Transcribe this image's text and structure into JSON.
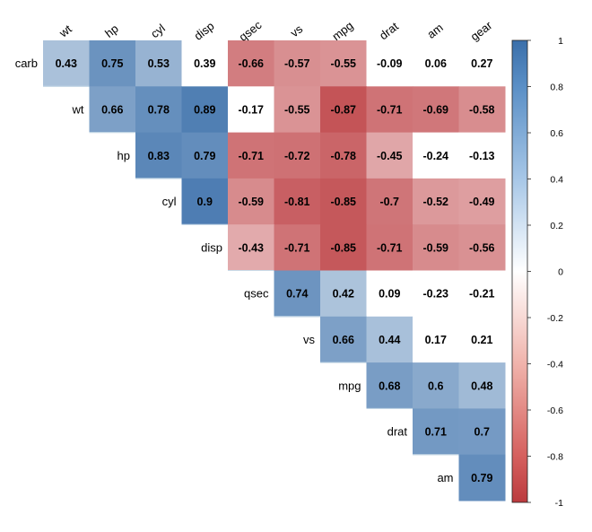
{
  "chart_data": {
    "type": "heatmap",
    "title": "",
    "columns": [
      "wt",
      "hp",
      "cyl",
      "disp",
      "qsec",
      "vs",
      "mpg",
      "drat",
      "am",
      "gear"
    ],
    "rows": [
      {
        "label": "carb",
        "values": [
          0.43,
          0.75,
          0.53,
          0.39,
          -0.66,
          -0.57,
          -0.55,
          -0.09,
          0.06,
          0.27
        ]
      },
      {
        "label": "wt",
        "values": [
          null,
          0.66,
          0.78,
          0.89,
          -0.17,
          -0.55,
          -0.87,
          -0.71,
          -0.69,
          -0.58
        ]
      },
      {
        "label": "hp",
        "values": [
          null,
          null,
          0.83,
          0.79,
          -0.71,
          -0.72,
          -0.78,
          -0.45,
          -0.24,
          -0.13
        ]
      },
      {
        "label": "cyl",
        "values": [
          null,
          null,
          null,
          0.9,
          -0.59,
          -0.81,
          -0.85,
          -0.7,
          -0.52,
          -0.49
        ]
      },
      {
        "label": "disp",
        "values": [
          null,
          null,
          null,
          null,
          -0.43,
          -0.71,
          -0.85,
          -0.71,
          -0.59,
          -0.56
        ]
      },
      {
        "label": "qsec",
        "values": [
          null,
          null,
          null,
          null,
          null,
          0.74,
          0.42,
          0.09,
          -0.23,
          -0.21
        ]
      },
      {
        "label": "vs",
        "values": [
          null,
          null,
          null,
          null,
          null,
          null,
          0.66,
          0.44,
          0.17,
          0.21
        ]
      },
      {
        "label": "mpg",
        "values": [
          null,
          null,
          null,
          null,
          null,
          null,
          null,
          0.68,
          0.6,
          0.48
        ]
      },
      {
        "label": "drat",
        "values": [
          null,
          null,
          null,
          null,
          null,
          null,
          null,
          null,
          0.71,
          0.7
        ]
      },
      {
        "label": "am",
        "values": [
          null,
          null,
          null,
          null,
          null,
          null,
          null,
          null,
          null,
          0.79
        ]
      }
    ],
    "cell_labels": {
      "carb": [
        "0.43",
        "0.75",
        "0.53",
        "0.39",
        "-0.66",
        "-0.57",
        "-0.55",
        "-0.09",
        "0.06",
        "0.27"
      ],
      "wt": [
        "",
        "0.66",
        "0.78",
        "0.89",
        "-0.17",
        "-0.55",
        "-0.87",
        "-0.71",
        "-0.69",
        "-0.58"
      ],
      "hp": [
        "",
        "",
        "0.83",
        "0.79",
        "-0.71",
        "-0.72",
        "-0.78",
        "-0.45",
        "-0.24",
        "-0.13"
      ],
      "cyl": [
        "",
        "",
        "",
        "0.9",
        "-0.59",
        "-0.81",
        "-0.85",
        "-0.7",
        "-0.52",
        "-0.49"
      ],
      "disp": [
        "",
        "",
        "",
        "",
        "-0.43",
        "-0.71",
        "-0.85",
        "-0.71",
        "-0.59",
        "-0.56"
      ],
      "qsec": [
        "",
        "",
        "",
        "",
        "",
        "0.74",
        "0.42",
        "0.09",
        "-0.23",
        "-0.21"
      ],
      "vs": [
        "",
        "",
        "",
        "",
        "",
        "",
        "0.66",
        "0.44",
        "0.17",
        "0.21"
      ],
      "mpg": [
        "",
        "",
        "",
        "",
        "",
        "",
        "",
        "0.68",
        "0.6",
        "0.48"
      ],
      "drat": [
        "",
        "",
        "",
        "",
        "",
        "",
        "",
        "",
        "0.71",
        "0.7"
      ],
      "am": [
        "",
        "",
        "",
        "",
        "",
        "",
        "",
        "",
        "",
        "0.79"
      ]
    },
    "color_scale": {
      "range": [
        -1,
        1
      ],
      "ticks": [
        1,
        0.8,
        0.6,
        0.4,
        0.2,
        0,
        -0.2,
        -0.4,
        -0.6,
        -0.8,
        -1
      ],
      "tick_labels": [
        "1",
        "0.8",
        "0.6",
        "0.4",
        "0.2",
        "0",
        "-0.2",
        "-0.4",
        "-0.6",
        "-0.8",
        "-1"
      ],
      "high_color": "#3a6faa",
      "mid_color": "#ffffff",
      "low_color": "#bb3a3e",
      "insignificant_color": "#ffffff",
      "significance_threshold": 0.4
    },
    "legend_placement": "right",
    "grid": false
  }
}
